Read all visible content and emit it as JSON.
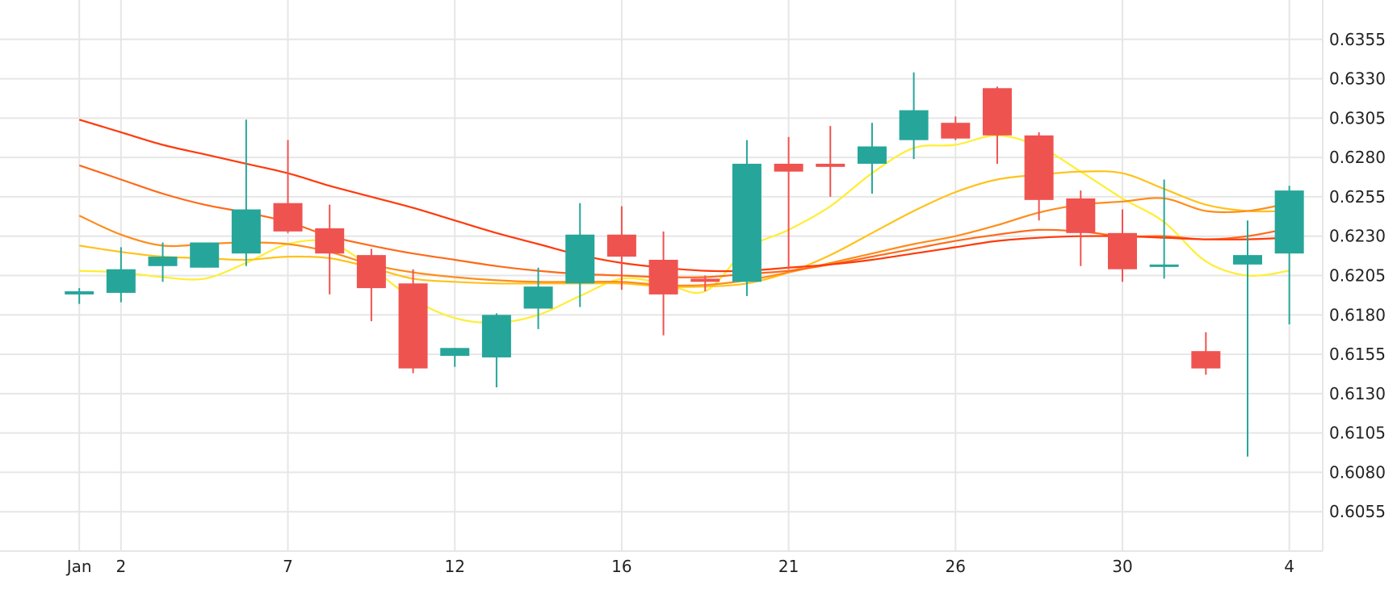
{
  "chart_data": {
    "type": "candlestick",
    "title": "",
    "xlabel": "",
    "ylabel": "",
    "y_axis_position": "right",
    "grid": true,
    "ylim": [
      0.603,
      0.638
    ],
    "xlim": [
      -1.9,
      29.8
    ],
    "yticks": [
      "0.6055",
      "0.6080",
      "0.6105",
      "0.6130",
      "0.6155",
      "0.6180",
      "0.6205",
      "0.6230",
      "0.6255",
      "0.6280",
      "0.6305",
      "0.6330",
      "0.6355"
    ],
    "xticks": [
      {
        "index": 0,
        "label": "Jan"
      },
      {
        "index": 1,
        "label": "2"
      },
      {
        "index": 5,
        "label": "7"
      },
      {
        "index": 9,
        "label": "12"
      },
      {
        "index": 13,
        "label": "16"
      },
      {
        "index": 17,
        "label": "21"
      },
      {
        "index": 21,
        "label": "26"
      },
      {
        "index": 25,
        "label": "30"
      },
      {
        "index": 29,
        "label": "4"
      }
    ],
    "candles": [
      {
        "o": 0.6193,
        "h": 0.6197,
        "l": 0.6187,
        "c": 0.6195
      },
      {
        "o": 0.6194,
        "h": 0.6223,
        "l": 0.6188,
        "c": 0.6209
      },
      {
        "o": 0.6211,
        "h": 0.6226,
        "l": 0.6201,
        "c": 0.6217
      },
      {
        "o": 0.621,
        "h": 0.6223,
        "l": 0.621,
        "c": 0.6226
      },
      {
        "o": 0.6219,
        "h": 0.6304,
        "l": 0.6211,
        "c": 0.6247
      },
      {
        "o": 0.6251,
        "h": 0.6291,
        "l": 0.6232,
        "c": 0.6233
      },
      {
        "o": 0.6235,
        "h": 0.625,
        "l": 0.6193,
        "c": 0.6219
      },
      {
        "o": 0.6218,
        "h": 0.6222,
        "l": 0.6176,
        "c": 0.6197
      },
      {
        "o": 0.62,
        "h": 0.6209,
        "l": 0.6143,
        "c": 0.6146
      },
      {
        "o": 0.6154,
        "h": 0.6159,
        "l": 0.6147,
        "c": 0.6159
      },
      {
        "o": 0.6153,
        "h": 0.6181,
        "l": 0.6134,
        "c": 0.618
      },
      {
        "o": 0.6184,
        "h": 0.621,
        "l": 0.6171,
        "c": 0.6198
      },
      {
        "o": 0.62,
        "h": 0.6251,
        "l": 0.6185,
        "c": 0.6231
      },
      {
        "o": 0.6231,
        "h": 0.6249,
        "l": 0.6196,
        "c": 0.6217
      },
      {
        "o": 0.6215,
        "h": 0.6233,
        "l": 0.6167,
        "c": 0.6193
      },
      {
        "o": 0.6203,
        "h": 0.6205,
        "l": 0.6195,
        "c": 0.6201
      },
      {
        "o": 0.6201,
        "h": 0.6291,
        "l": 0.6192,
        "c": 0.6276
      },
      {
        "o": 0.6276,
        "h": 0.6293,
        "l": 0.6209,
        "c": 0.6271
      },
      {
        "o": 0.6276,
        "h": 0.63,
        "l": 0.6255,
        "c": 0.6274
      },
      {
        "o": 0.6276,
        "h": 0.6302,
        "l": 0.6257,
        "c": 0.6287
      },
      {
        "o": 0.6291,
        "h": 0.6334,
        "l": 0.6279,
        "c": 0.631
      },
      {
        "o": 0.6302,
        "h": 0.6306,
        "l": 0.6291,
        "c": 0.6292
      },
      {
        "o": 0.6324,
        "h": 0.6325,
        "l": 0.6276,
        "c": 0.6294
      },
      {
        "o": 0.6294,
        "h": 0.6296,
        "l": 0.624,
        "c": 0.6253
      },
      {
        "o": 0.6254,
        "h": 0.6259,
        "l": 0.6211,
        "c": 0.6232
      },
      {
        "o": 0.6232,
        "h": 0.6247,
        "l": 0.6201,
        "c": 0.6209
      },
      {
        "o": 0.6212,
        "h": 0.6266,
        "l": 0.6203,
        "c": 0.6212
      },
      {
        "o": 0.6157,
        "h": 0.6169,
        "l": 0.6142,
        "c": 0.6146
      },
      {
        "o": 0.6212,
        "h": 0.624,
        "l": 0.609,
        "c": 0.6218
      },
      {
        "o": 0.6219,
        "h": 0.6262,
        "l": 0.6174,
        "c": 0.6259
      }
    ],
    "series": [
      {
        "color": "#ffee33",
        "values": [
          0.6208,
          0.6207,
          0.6204,
          0.6203,
          0.6213,
          0.6225,
          0.6226,
          0.621,
          0.619,
          0.6178,
          0.6175,
          0.618,
          0.6192,
          0.6203,
          0.62,
          0.6195,
          0.6222,
          0.6234,
          0.6249,
          0.627,
          0.6286,
          0.6288,
          0.6294,
          0.6287,
          0.6271,
          0.6254,
          0.6239,
          0.6214,
          0.6205,
          0.6208
        ]
      },
      {
        "color": "#ffc21a",
        "values": [
          0.6224,
          0.622,
          0.6217,
          0.6216,
          0.6215,
          0.6217,
          0.6216,
          0.621,
          0.6203,
          0.6201,
          0.62,
          0.62,
          0.62,
          0.62,
          0.6198,
          0.6198,
          0.62,
          0.6207,
          0.6218,
          0.6232,
          0.6246,
          0.6258,
          0.6266,
          0.6269,
          0.6271,
          0.627,
          0.626,
          0.625,
          0.6246,
          0.6246
        ]
      },
      {
        "color": "#ff8c1a",
        "values": [
          0.6243,
          0.6231,
          0.6224,
          0.6225,
          0.6226,
          0.6225,
          0.622,
          0.6212,
          0.6207,
          0.6204,
          0.6202,
          0.6201,
          0.6201,
          0.6201,
          0.6199,
          0.6199,
          0.6202,
          0.6207,
          0.6213,
          0.6219,
          0.6225,
          0.623,
          0.6237,
          0.6245,
          0.625,
          0.6252,
          0.6254,
          0.6246,
          0.6246,
          0.6251
        ]
      },
      {
        "color": "#ff6a1a",
        "values": [
          0.6275,
          0.6266,
          0.6257,
          0.625,
          0.6245,
          0.6239,
          0.623,
          0.6224,
          0.6219,
          0.6215,
          0.6211,
          0.6208,
          0.6206,
          0.6205,
          0.6204,
          0.6204,
          0.6206,
          0.6208,
          0.6212,
          0.6217,
          0.6222,
          0.6227,
          0.6231,
          0.6234,
          0.6233,
          0.623,
          0.623,
          0.6228,
          0.623,
          0.6235
        ]
      },
      {
        "color": "#ff3a0a",
        "values": [
          0.6304,
          0.6296,
          0.6288,
          0.6282,
          0.6276,
          0.627,
          0.6262,
          0.6255,
          0.6248,
          0.624,
          0.6232,
          0.6225,
          0.6218,
          0.6213,
          0.621,
          0.6208,
          0.6208,
          0.621,
          0.6212,
          0.6215,
          0.6219,
          0.6223,
          0.6227,
          0.6229,
          0.623,
          0.623,
          0.6229,
          0.6228,
          0.6228,
          0.6229
        ]
      }
    ],
    "colors": {
      "up": "#26a69a",
      "down": "#ef5350",
      "grid": "#e6e6e6",
      "axis_text": "#222222"
    }
  }
}
